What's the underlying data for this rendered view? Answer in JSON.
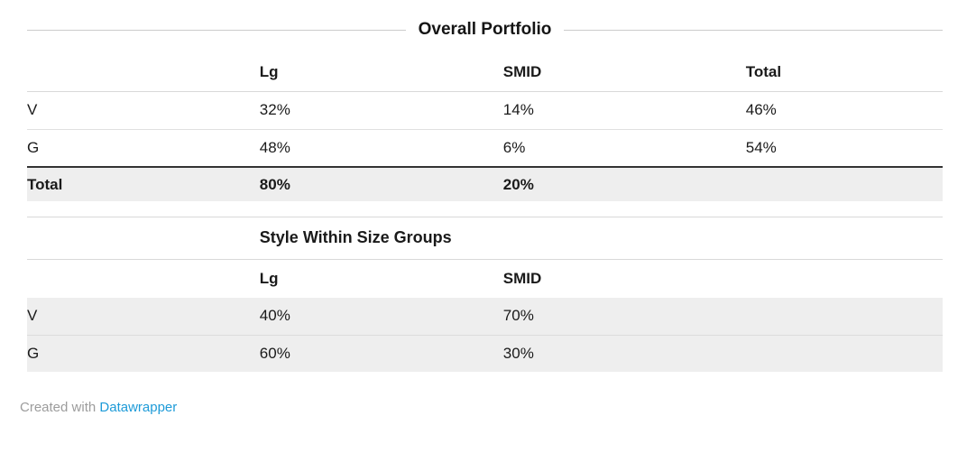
{
  "chart_data": [
    {
      "type": "table",
      "title": "Overall Portfolio",
      "columns": [
        "",
        "Lg",
        "SMID",
        "Total"
      ],
      "rows": [
        [
          "V",
          "32%",
          "14%",
          "46%"
        ],
        [
          "G",
          "48%",
          "6%",
          "54%"
        ],
        [
          "Total",
          "80%",
          "20%",
          ""
        ]
      ],
      "layout_hints": {
        "total_row_highlight": "#eeeeee",
        "total_row_top_border": "#333333",
        "title_position": "centered-with-rules"
      }
    },
    {
      "type": "table",
      "title": "Style Within Size Groups",
      "columns": [
        "",
        "Lg",
        "SMID"
      ],
      "rows": [
        [
          "V",
          "40%",
          "70%"
        ],
        [
          "G",
          "60%",
          "30%"
        ]
      ],
      "layout_hints": {
        "data_row_highlight": "#eeeeee",
        "title_position": "left-aligned-second-column"
      }
    }
  ],
  "footer": {
    "prefix": "Created with",
    "link_label": "Datawrapper"
  },
  "colors": {
    "link_blue": "#1e9bd8",
    "row_highlight": "#eeeeee",
    "strong_border": "#333333",
    "light_rule": "#d9d9d9"
  }
}
